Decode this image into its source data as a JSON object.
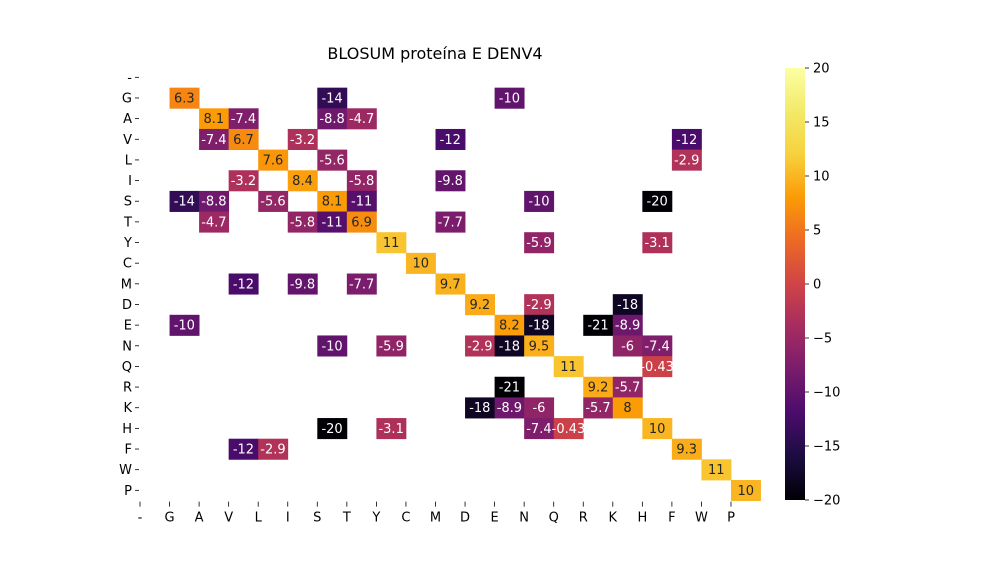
{
  "chart_data": {
    "type": "heatmap",
    "title": "BLOSUM proteína E DENV4",
    "xlabel": "",
    "ylabel": "",
    "row_labels": [
      "-",
      "G",
      "A",
      "V",
      "L",
      "I",
      "S",
      "T",
      "Y",
      "C",
      "M",
      "D",
      "E",
      "N",
      "Q",
      "R",
      "K",
      "H",
      "F",
      "W",
      "P"
    ],
    "col_labels": [
      "-",
      "G",
      "A",
      "V",
      "L",
      "I",
      "S",
      "T",
      "Y",
      "C",
      "M",
      "D",
      "E",
      "N",
      "Q",
      "R",
      "K",
      "H",
      "F",
      "W",
      "P"
    ],
    "cells": [
      {
        "row": "G",
        "col": "G",
        "value": 6.3,
        "label": "6.3"
      },
      {
        "row": "G",
        "col": "S",
        "value": -14,
        "label": "-14"
      },
      {
        "row": "G",
        "col": "E",
        "value": -10,
        "label": "-10"
      },
      {
        "row": "A",
        "col": "A",
        "value": 8.1,
        "label": "8.1"
      },
      {
        "row": "A",
        "col": "V",
        "value": -7.4,
        "label": "-7.4"
      },
      {
        "row": "A",
        "col": "S",
        "value": -8.8,
        "label": "-8.8"
      },
      {
        "row": "A",
        "col": "T",
        "value": -4.7,
        "label": "-4.7"
      },
      {
        "row": "V",
        "col": "A",
        "value": -7.4,
        "label": "-7.4"
      },
      {
        "row": "V",
        "col": "V",
        "value": 6.7,
        "label": "6.7"
      },
      {
        "row": "V",
        "col": "I",
        "value": -3.2,
        "label": "-3.2"
      },
      {
        "row": "V",
        "col": "M",
        "value": -12,
        "label": "-12"
      },
      {
        "row": "V",
        "col": "F",
        "value": -12,
        "label": "-12"
      },
      {
        "row": "L",
        "col": "L",
        "value": 7.6,
        "label": "7.6"
      },
      {
        "row": "L",
        "col": "S",
        "value": -5.6,
        "label": "-5.6"
      },
      {
        "row": "L",
        "col": "F",
        "value": -2.9,
        "label": "-2.9"
      },
      {
        "row": "I",
        "col": "V",
        "value": -3.2,
        "label": "-3.2"
      },
      {
        "row": "I",
        "col": "I",
        "value": 8.4,
        "label": "8.4"
      },
      {
        "row": "I",
        "col": "T",
        "value": -5.8,
        "label": "-5.8"
      },
      {
        "row": "I",
        "col": "M",
        "value": -9.8,
        "label": "-9.8"
      },
      {
        "row": "S",
        "col": "G",
        "value": -14,
        "label": "-14"
      },
      {
        "row": "S",
        "col": "A",
        "value": -8.8,
        "label": "-8.8"
      },
      {
        "row": "S",
        "col": "L",
        "value": -5.6,
        "label": "-5.6"
      },
      {
        "row": "S",
        "col": "S",
        "value": 8.1,
        "label": "8.1"
      },
      {
        "row": "S",
        "col": "T",
        "value": -11,
        "label": "-11"
      },
      {
        "row": "S",
        "col": "N",
        "value": -10,
        "label": "-10"
      },
      {
        "row": "S",
        "col": "H",
        "value": -20,
        "label": "-20"
      },
      {
        "row": "T",
        "col": "A",
        "value": -4.7,
        "label": "-4.7"
      },
      {
        "row": "T",
        "col": "I",
        "value": -5.8,
        "label": "-5.8"
      },
      {
        "row": "T",
        "col": "S",
        "value": -11,
        "label": "-11"
      },
      {
        "row": "T",
        "col": "T",
        "value": 6.9,
        "label": "6.9"
      },
      {
        "row": "T",
        "col": "M",
        "value": -7.7,
        "label": "-7.7"
      },
      {
        "row": "Y",
        "col": "Y",
        "value": 11,
        "label": "11"
      },
      {
        "row": "Y",
        "col": "N",
        "value": -5.9,
        "label": "-5.9"
      },
      {
        "row": "Y",
        "col": "H",
        "value": -3.1,
        "label": "-3.1"
      },
      {
        "row": "C",
        "col": "C",
        "value": 10,
        "label": "10"
      },
      {
        "row": "M",
        "col": "V",
        "value": -12,
        "label": "-12"
      },
      {
        "row": "M",
        "col": "I",
        "value": -9.8,
        "label": "-9.8"
      },
      {
        "row": "M",
        "col": "T",
        "value": -7.7,
        "label": "-7.7"
      },
      {
        "row": "M",
        "col": "M",
        "value": 9.7,
        "label": "9.7"
      },
      {
        "row": "D",
        "col": "D",
        "value": 9.2,
        "label": "9.2"
      },
      {
        "row": "D",
        "col": "N",
        "value": -2.9,
        "label": "-2.9"
      },
      {
        "row": "D",
        "col": "K",
        "value": -18,
        "label": "-18"
      },
      {
        "row": "E",
        "col": "G",
        "value": -10,
        "label": "-10"
      },
      {
        "row": "E",
        "col": "E",
        "value": 8.2,
        "label": "8.2"
      },
      {
        "row": "E",
        "col": "N",
        "value": -18,
        "label": "-18"
      },
      {
        "row": "E",
        "col": "R",
        "value": -21,
        "label": "-21"
      },
      {
        "row": "E",
        "col": "K",
        "value": -8.9,
        "label": "-8.9"
      },
      {
        "row": "N",
        "col": "S",
        "value": -10,
        "label": "-10"
      },
      {
        "row": "N",
        "col": "Y",
        "value": -5.9,
        "label": "-5.9"
      },
      {
        "row": "N",
        "col": "D",
        "value": -2.9,
        "label": "-2.9"
      },
      {
        "row": "N",
        "col": "E",
        "value": -18,
        "label": "-18"
      },
      {
        "row": "N",
        "col": "N",
        "value": 9.5,
        "label": "9.5"
      },
      {
        "row": "N",
        "col": "K",
        "value": -6,
        "label": "-6"
      },
      {
        "row": "N",
        "col": "H",
        "value": -7.4,
        "label": "-7.4"
      },
      {
        "row": "Q",
        "col": "Q",
        "value": 11,
        "label": "11"
      },
      {
        "row": "Q",
        "col": "H",
        "value": -0.43,
        "label": "-0.43"
      },
      {
        "row": "R",
        "col": "E",
        "value": -21,
        "label": "-21"
      },
      {
        "row": "R",
        "col": "R",
        "value": 9.2,
        "label": "9.2"
      },
      {
        "row": "R",
        "col": "K",
        "value": -5.7,
        "label": "-5.7"
      },
      {
        "row": "K",
        "col": "D",
        "value": -18,
        "label": "-18"
      },
      {
        "row": "K",
        "col": "E",
        "value": -8.9,
        "label": "-8.9"
      },
      {
        "row": "K",
        "col": "N",
        "value": -6,
        "label": "-6"
      },
      {
        "row": "K",
        "col": "R",
        "value": -5.7,
        "label": "-5.7"
      },
      {
        "row": "K",
        "col": "K",
        "value": 8,
        "label": "8"
      },
      {
        "row": "H",
        "col": "S",
        "value": -20,
        "label": "-20"
      },
      {
        "row": "H",
        "col": "Y",
        "value": -3.1,
        "label": "-3.1"
      },
      {
        "row": "H",
        "col": "N",
        "value": -7.4,
        "label": "-7.4"
      },
      {
        "row": "H",
        "col": "Q",
        "value": -0.43,
        "label": "-0.43"
      },
      {
        "row": "H",
        "col": "H",
        "value": 10,
        "label": "10"
      },
      {
        "row": "F",
        "col": "V",
        "value": -12,
        "label": "-12"
      },
      {
        "row": "F",
        "col": "L",
        "value": -2.9,
        "label": "-2.9"
      },
      {
        "row": "F",
        "col": "F",
        "value": 9.3,
        "label": "9.3"
      },
      {
        "row": "W",
        "col": "W",
        "value": 11,
        "label": "11"
      },
      {
        "row": "P",
        "col": "P",
        "value": 10,
        "label": "10"
      }
    ],
    "colormap": "inferno",
    "colorbar": {
      "vmin": -20,
      "vmax": 20,
      "ticks": [
        20,
        15,
        10,
        5,
        0,
        -5,
        -10,
        -15,
        -20
      ],
      "tick_labels": [
        "20",
        "15",
        "10",
        "5",
        "0",
        "−5",
        "−10",
        "−15",
        "−20"
      ]
    },
    "grid": false
  }
}
